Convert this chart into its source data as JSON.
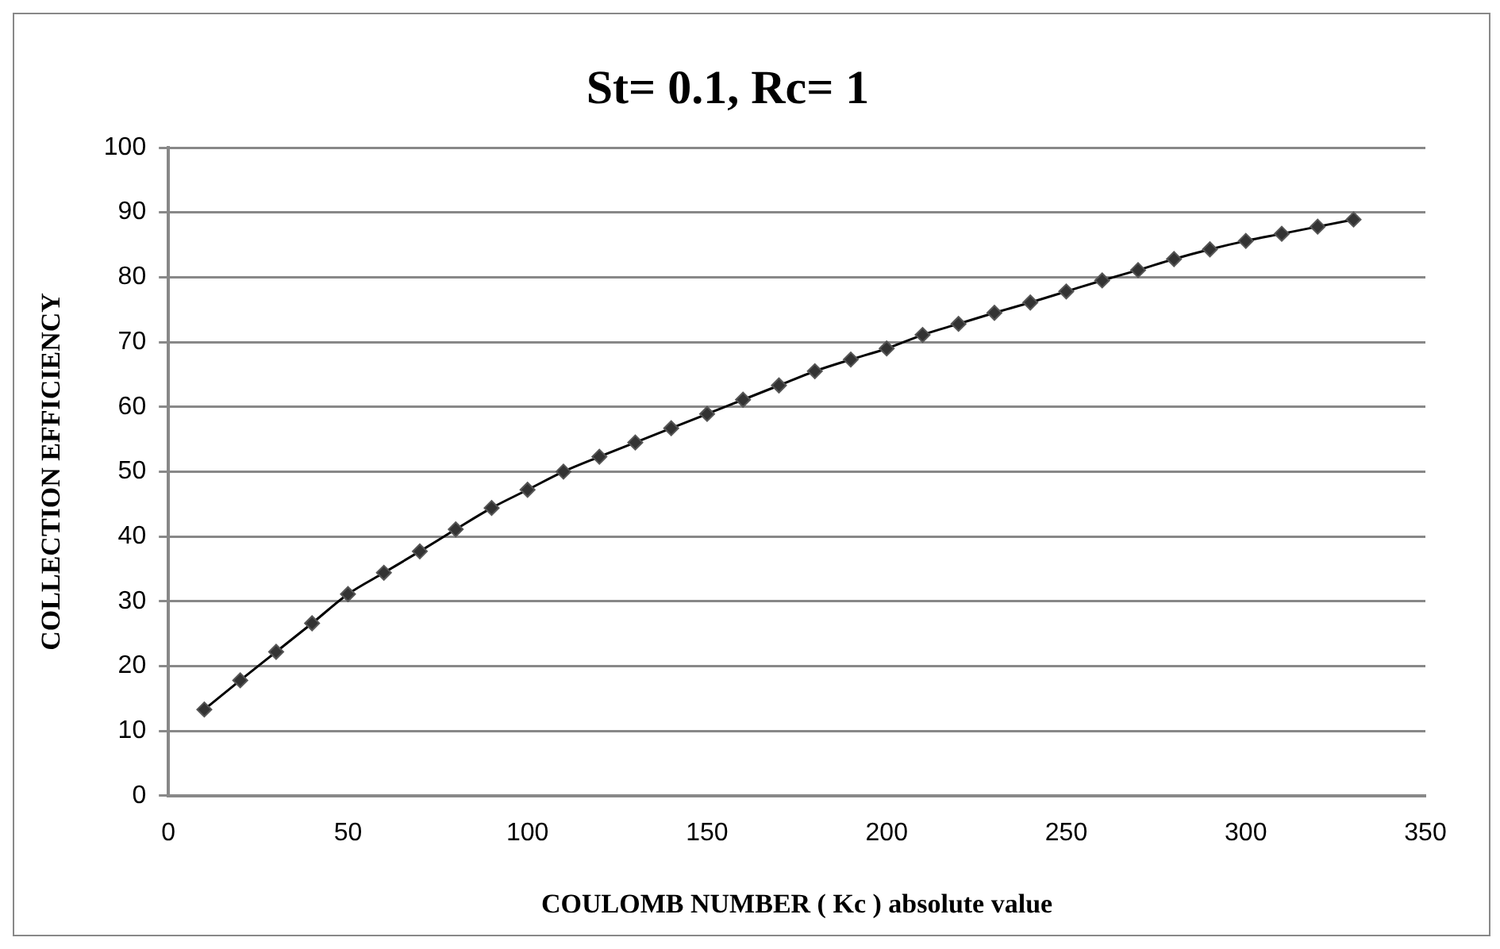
{
  "chart_data": {
    "type": "line",
    "title": "St= 0.1, Rc= 1",
    "xlabel": "COULOMB NUMBER ( Kc ) absolute value",
    "ylabel": "COLLECTION EFFICIENCY",
    "x": [
      10,
      20,
      30,
      40,
      50,
      60,
      70,
      80,
      90,
      100,
      110,
      120,
      130,
      140,
      150,
      160,
      170,
      180,
      190,
      200,
      210,
      220,
      230,
      240,
      250,
      260,
      270,
      280,
      290,
      300,
      310,
      320,
      330
    ],
    "series": [
      {
        "color": "#000000",
        "values": [
          13.3,
          17.8,
          22.2,
          26.6,
          31.1,
          34.4,
          37.7,
          41.1,
          44.4,
          47.2,
          50,
          52.3,
          54.5,
          56.7,
          58.9,
          61.1,
          63.3,
          65.5,
          67.3,
          69,
          71.1,
          72.8,
          74.5,
          76.1,
          77.8,
          79.5,
          81.1,
          82.8,
          84.3,
          85.6,
          86.7,
          87.8,
          88.9
        ]
      }
    ],
    "xlim": [
      0,
      350
    ],
    "xticks": [
      0,
      50,
      100,
      150,
      200,
      250,
      300,
      350
    ],
    "ylim": [
      0,
      100
    ],
    "yticks": [
      0,
      10,
      20,
      30,
      40,
      50,
      60,
      70,
      80,
      90,
      100
    ],
    "grid": "y",
    "legend": false,
    "marker": "diamond",
    "line_style": "solid"
  }
}
